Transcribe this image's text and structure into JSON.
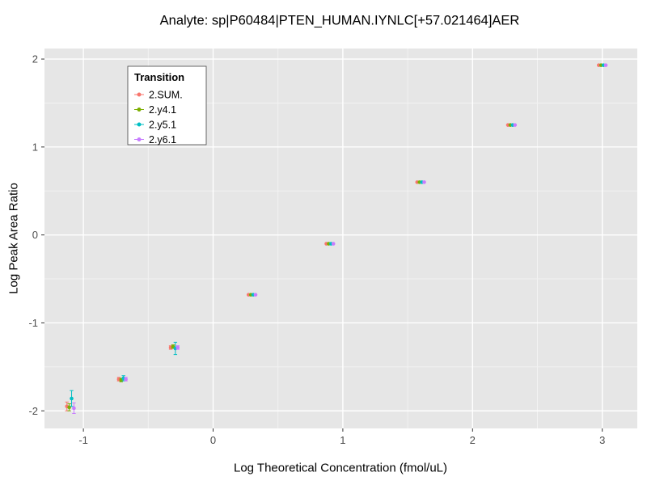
{
  "chart_data": {
    "type": "scatter",
    "title": "Analyte: sp|P60484|PTEN_HUMAN.IYNLC[+57.021464]AER",
    "xlabel": "Log Theoretical Concentration (fmol/uL)",
    "ylabel": "Log Peak Area Ratio",
    "legend_title": "Transition",
    "legend_position": "top-left-inside",
    "grid": true,
    "xlim": [
      -1.3,
      3.27
    ],
    "ylim": [
      -2.2,
      2.12
    ],
    "x_ticks": [
      -1,
      0,
      1,
      2,
      3
    ],
    "y_ticks": [
      -2,
      -1,
      0,
      1,
      2
    ],
    "x": [
      -1.1,
      -0.7,
      -0.3,
      0.3,
      0.9,
      1.6,
      2.3,
      3.0
    ],
    "series": [
      {
        "name": "2.SUM.",
        "color": "#F8766D",
        "y": [
          -1.95,
          -1.64,
          -1.28,
          -0.68,
          -0.1,
          0.6,
          1.25,
          1.93
        ],
        "yerr": [
          0.05,
          0.02,
          0.02,
          0.01,
          0.005,
          0.005,
          0.005,
          0.005
        ]
      },
      {
        "name": "2.y4.1",
        "color": "#7CAE00",
        "y": [
          -1.96,
          -1.65,
          -1.27,
          -0.68,
          -0.1,
          0.6,
          1.25,
          1.93
        ],
        "yerr": [
          0.04,
          0.02,
          0.02,
          0.01,
          0.005,
          0.005,
          0.005,
          0.005
        ]
      },
      {
        "name": "2.y5.1",
        "color": "#00BFC4",
        "y": [
          -1.86,
          -1.63,
          -1.29,
          -0.68,
          -0.1,
          0.6,
          1.25,
          1.93
        ],
        "yerr": [
          0.09,
          0.03,
          0.07,
          0.01,
          0.005,
          0.005,
          0.005,
          0.005
        ]
      },
      {
        "name": "2.y6.1",
        "color": "#C77CFF",
        "y": [
          -1.97,
          -1.64,
          -1.28,
          -0.68,
          -0.1,
          0.6,
          1.25,
          1.93
        ],
        "yerr": [
          0.06,
          0.02,
          0.02,
          0.01,
          0.005,
          0.005,
          0.005,
          0.005
        ]
      }
    ],
    "colors": {
      "panel_bg": "#E6E6E6",
      "grid_major": "#FFFFFF",
      "grid_minor": "#F2F2F2",
      "tick_mark": "#333333",
      "tick_label": "#4D4D4D",
      "legend_bg": "#FFFFFF",
      "legend_border": "#444444"
    }
  }
}
